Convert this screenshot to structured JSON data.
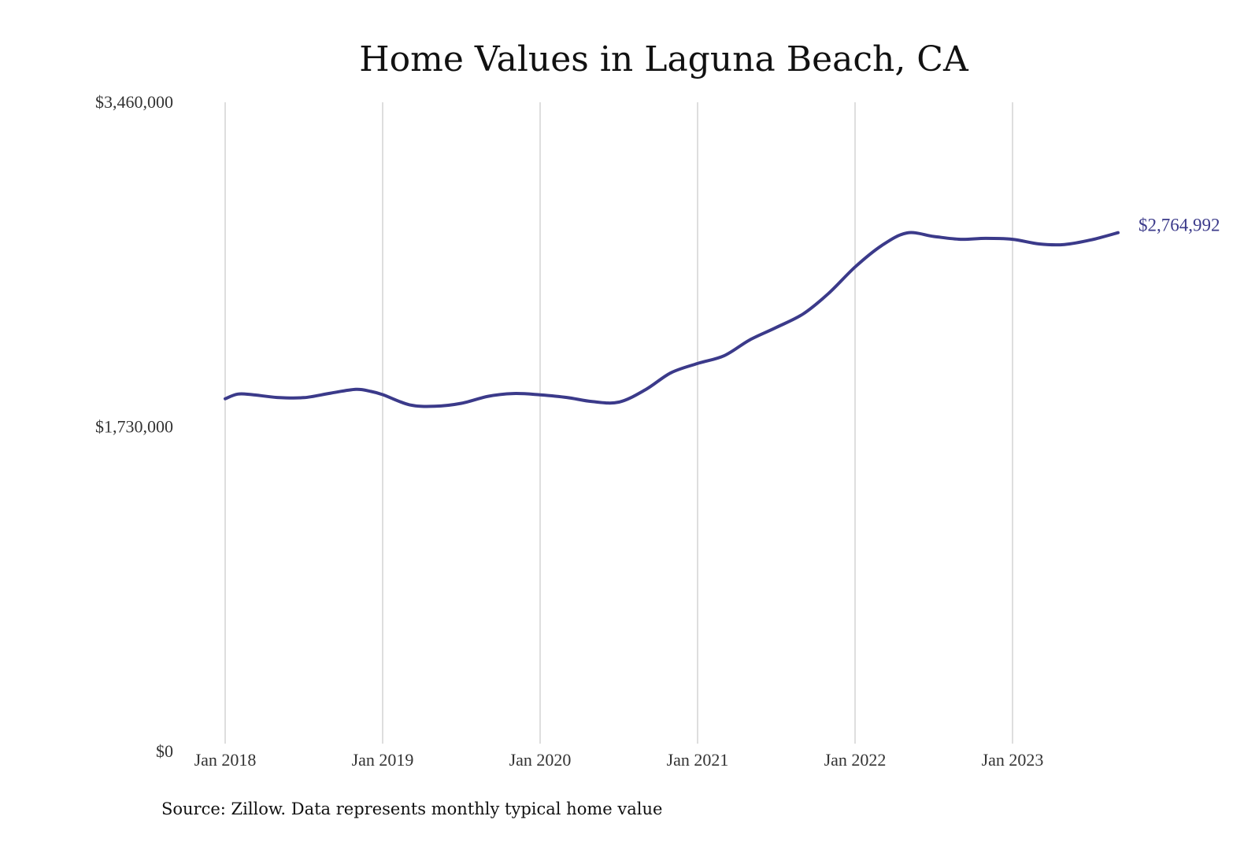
{
  "chart_data": {
    "type": "line",
    "title": "Home Values in Laguna Beach, CA",
    "xlabel": "",
    "ylabel": "",
    "ylim": [
      0,
      3460000
    ],
    "y_ticks": [
      {
        "value": 0,
        "label": "$0"
      },
      {
        "value": 1730000,
        "label": "$1,730,000"
      },
      {
        "value": 3460000,
        "label": "$3,460,000"
      }
    ],
    "x_ticks": [
      {
        "value": 2018.0,
        "label": "Jan 2018"
      },
      {
        "value": 2019.0,
        "label": "Jan 2019"
      },
      {
        "value": 2020.0,
        "label": "Jan 2020"
      },
      {
        "value": 2021.0,
        "label": "Jan 2021"
      },
      {
        "value": 2022.0,
        "label": "Jan 2022"
      },
      {
        "value": 2023.0,
        "label": "Jan 2023"
      }
    ],
    "xlim": [
      2018.0,
      2023.75
    ],
    "grid": "vertical",
    "series": [
      {
        "name": "Typical home value",
        "color": "#3b3a8a",
        "x": [
          2018.0,
          2018.08,
          2018.17,
          2018.33,
          2018.5,
          2018.67,
          2018.83,
          2018.92,
          2019.0,
          2019.17,
          2019.33,
          2019.5,
          2019.67,
          2019.83,
          2020.0,
          2020.17,
          2020.33,
          2020.5,
          2020.67,
          2020.83,
          2021.0,
          2021.17,
          2021.33,
          2021.5,
          2021.67,
          2021.83,
          2022.0,
          2022.17,
          2022.33,
          2022.5,
          2022.67,
          2022.83,
          2023.0,
          2023.17,
          2023.33,
          2023.5,
          2023.67
        ],
        "values": [
          1880000,
          1905000,
          1902000,
          1887000,
          1886000,
          1910000,
          1930000,
          1920000,
          1902000,
          1848000,
          1840000,
          1856000,
          1893000,
          1908000,
          1901000,
          1887000,
          1865000,
          1862000,
          1929000,
          2018000,
          2068000,
          2110000,
          2193000,
          2260000,
          2332000,
          2440000,
          2582000,
          2697000,
          2764000,
          2745000,
          2730000,
          2735000,
          2730000,
          2705000,
          2702000,
          2727000,
          2764992
        ]
      }
    ],
    "end_label": "$2,764,992",
    "source": "Source: Zillow. Data represents monthly typical home value"
  }
}
